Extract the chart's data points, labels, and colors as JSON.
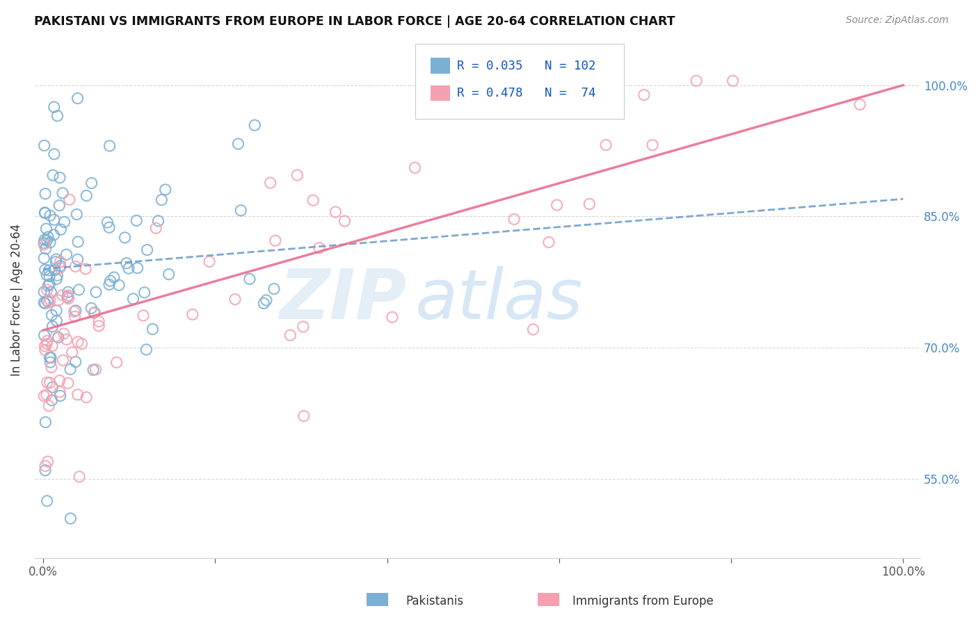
{
  "title": "PAKISTANI VS IMMIGRANTS FROM EUROPE IN LABOR FORCE | AGE 20-64 CORRELATION CHART",
  "source": "Source: ZipAtlas.com",
  "ylabel": "In Labor Force | Age 20-64",
  "legend_label1": "Pakistanis",
  "legend_label2": "Immigrants from Europe",
  "R1": 0.035,
  "N1": 102,
  "R2": 0.478,
  "N2": 74,
  "color1": "#7bafd4",
  "color2": "#f4a0b0",
  "trendline1_color": "#6699cc",
  "trendline2_color": "#e87090",
  "yticks": [
    0.55,
    0.7,
    0.85,
    1.0
  ],
  "ymin": 0.46,
  "ymax": 1.05,
  "xmin": -0.01,
  "xmax": 1.02,
  "trendline1_start": 0.79,
  "trendline1_end": 0.87,
  "trendline2_start": 0.72,
  "trendline2_end": 1.0,
  "watermark_zip": "ZIP",
  "watermark_atlas": "atlas",
  "background_color": "#ffffff"
}
